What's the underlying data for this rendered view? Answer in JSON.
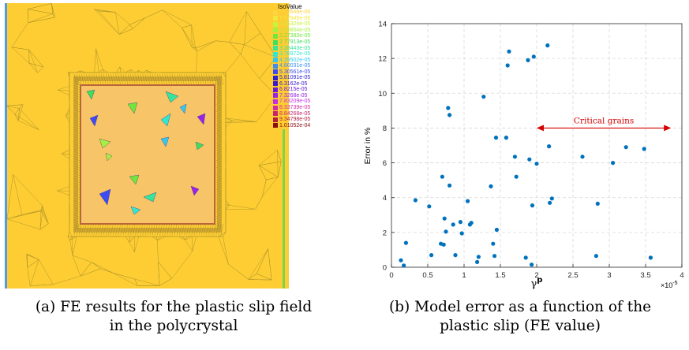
{
  "figure_a": {
    "legend_title": "IsoValue",
    "legend": [
      {
        "label": "2.52648e-06",
        "color": "#ffd43d"
      },
      {
        "label": "7.57945e-06",
        "color": "#f4e63a"
      },
      {
        "label": "1.26324e-05",
        "color": "#c9f23b"
      },
      {
        "label": "1.76854e-05",
        "color": "#a6f03f"
      },
      {
        "label": "2.27383e-05",
        "color": "#6fe83a"
      },
      {
        "label": "2.77913e-05",
        "color": "#3ee05a"
      },
      {
        "label": "3.28443e-05",
        "color": "#36e59a"
      },
      {
        "label": "3.78972e-05",
        "color": "#30e8cf"
      },
      {
        "label": "4.29502e-05",
        "color": "#33c8f0"
      },
      {
        "label": "4.80031e-05",
        "color": "#3d8cf5"
      },
      {
        "label": "5.30561e-05",
        "color": "#3c4cf0"
      },
      {
        "label": "5.81091e-05",
        "color": "#2c1fd1"
      },
      {
        "label": "6.3162e-05",
        "color": "#3d18c8"
      },
      {
        "label": "6.8215e-05",
        "color": "#6a1ad8"
      },
      {
        "label": "7.3268e-05",
        "color": "#9a22e6"
      },
      {
        "label": "7.83209e-05",
        "color": "#c72ee0"
      },
      {
        "label": "8.33739e-05",
        "color": "#d22aa8"
      },
      {
        "label": "8.84268e-05",
        "color": "#c8246e"
      },
      {
        "label": "9.34798e-05",
        "color": "#b21c40"
      },
      {
        "label": "1.01052e-04",
        "color": "#8a0d12"
      }
    ],
    "colors": {
      "background": "#fdcd33",
      "edges": "#b3962a",
      "inner_square": "#f7c567",
      "border": "#b8643c",
      "left_strip": "#4a9cf0",
      "right_strip": "#7bd548"
    }
  },
  "chart_data": {
    "type": "scatter",
    "xlabel": "γp",
    "ylabel": "Error in %",
    "x_multiplier_label": "×10",
    "x_multiplier_exp": "-5",
    "xlim": [
      0,
      4
    ],
    "ylim": [
      0,
      14
    ],
    "xticks": [
      "0",
      "0.5",
      "1",
      "1.5",
      "2",
      "2.5",
      "3",
      "3.5",
      "4"
    ],
    "yticks": [
      "0",
      "2",
      "4",
      "6",
      "8",
      "10",
      "12",
      "14"
    ],
    "grid": true,
    "marker_color": "#0072bd",
    "annotation": {
      "text": "Critical grains",
      "x_start": 2.0,
      "x_end": 3.85,
      "y": 8.0,
      "color": "#d40000"
    },
    "points": [
      [
        0.13,
        0.4
      ],
      [
        0.17,
        0.1
      ],
      [
        0.2,
        1.4
      ],
      [
        0.33,
        3.85
      ],
      [
        0.52,
        3.5
      ],
      [
        0.55,
        0.7
      ],
      [
        0.68,
        1.35
      ],
      [
        0.7,
        5.2
      ],
      [
        0.72,
        1.3
      ],
      [
        0.73,
        2.8
      ],
      [
        0.75,
        2.05
      ],
      [
        0.78,
        9.15
      ],
      [
        0.8,
        8.75
      ],
      [
        0.8,
        4.7
      ],
      [
        0.85,
        2.45
      ],
      [
        0.88,
        0.7
      ],
      [
        0.95,
        2.6
      ],
      [
        0.97,
        1.95
      ],
      [
        1.05,
        3.8
      ],
      [
        1.08,
        2.45
      ],
      [
        1.1,
        2.55
      ],
      [
        1.18,
        0.3
      ],
      [
        1.2,
        0.6
      ],
      [
        1.27,
        9.8
      ],
      [
        1.37,
        4.65
      ],
      [
        1.4,
        1.35
      ],
      [
        1.42,
        0.65
      ],
      [
        1.44,
        7.45
      ],
      [
        1.45,
        2.15
      ],
      [
        1.58,
        7.45
      ],
      [
        1.6,
        11.6
      ],
      [
        1.62,
        12.4
      ],
      [
        1.7,
        6.35
      ],
      [
        1.72,
        5.2
      ],
      [
        1.85,
        0.55
      ],
      [
        1.88,
        11.9
      ],
      [
        1.9,
        6.2
      ],
      [
        1.93,
        0.15
      ],
      [
        1.94,
        3.55
      ],
      [
        1.96,
        12.1
      ],
      [
        2.0,
        5.95
      ],
      [
        2.15,
        12.75
      ],
      [
        2.17,
        6.95
      ],
      [
        2.18,
        3.7
      ],
      [
        2.21,
        3.95
      ],
      [
        2.63,
        6.35
      ],
      [
        2.82,
        0.65
      ],
      [
        2.84,
        3.65
      ],
      [
        3.05,
        6.0
      ],
      [
        3.23,
        6.9
      ],
      [
        3.48,
        6.8
      ],
      [
        3.57,
        0.55
      ]
    ]
  },
  "captions": {
    "a": [
      "(a) FE results for the plastic slip field",
      "in the polycrystal"
    ],
    "b": [
      "(b) Model error as a function of the",
      "plastic slip (FE value)"
    ]
  }
}
